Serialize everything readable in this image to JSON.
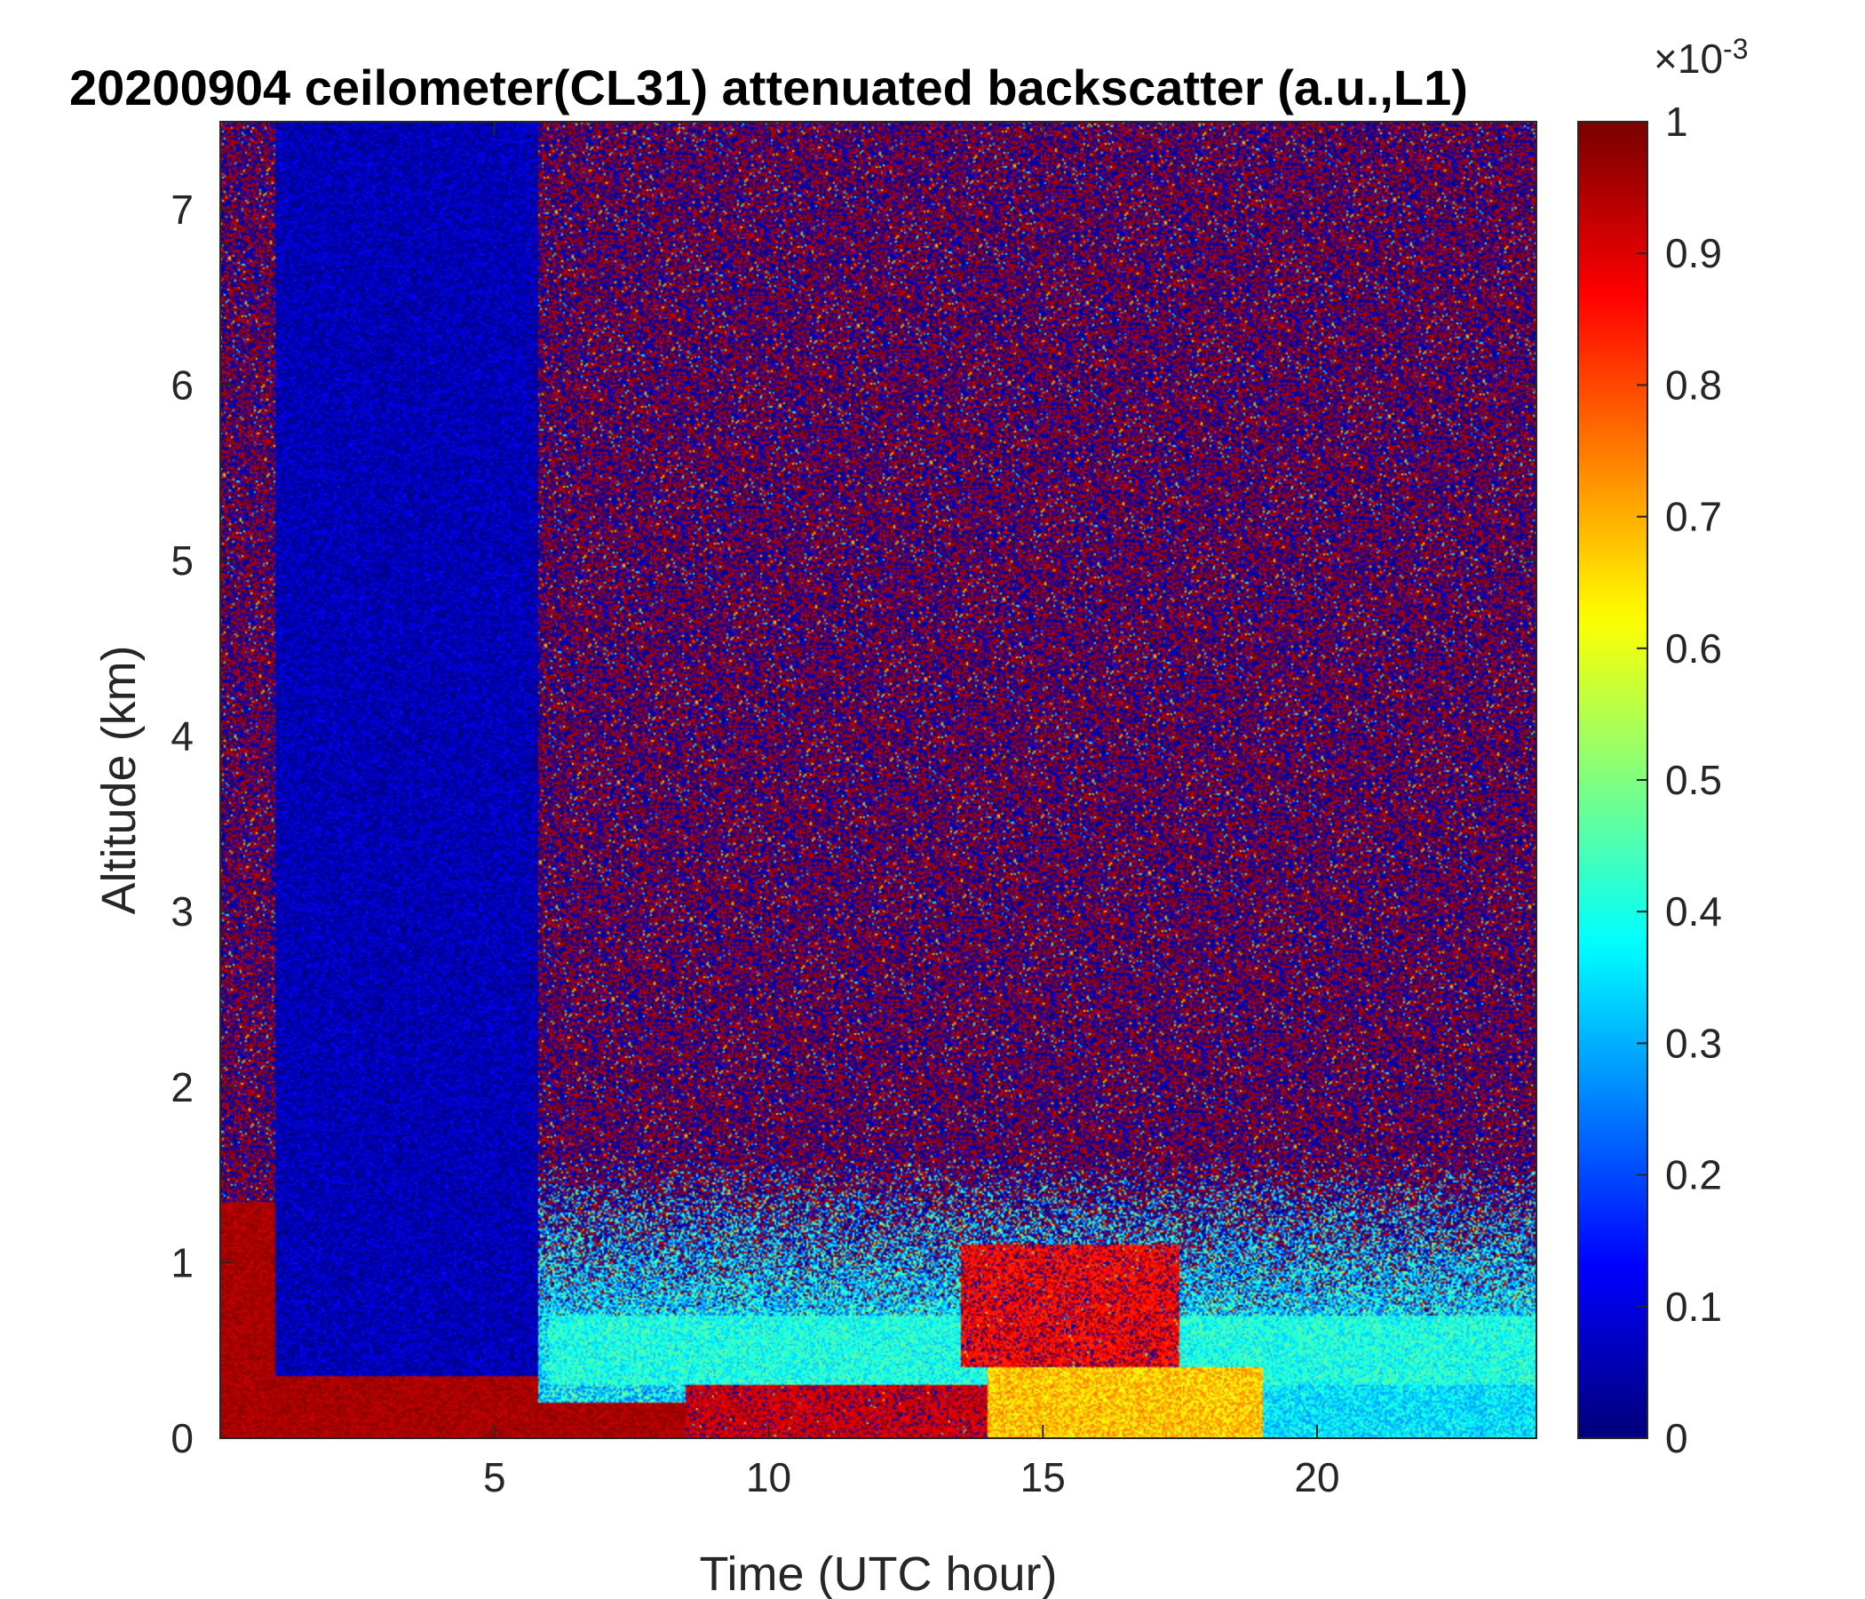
{
  "chart_data": {
    "type": "heatmap",
    "title": "20200904 ceilometer(CL31) attenuated backscatter (a.u.,L1)",
    "xlabel": "Time (UTC hour)",
    "ylabel": "Altitude (km)",
    "xlim": [
      0,
      24
    ],
    "ylim": [
      0,
      7.5
    ],
    "x_ticks": [
      5,
      10,
      15,
      20
    ],
    "y_ticks": [
      0,
      1,
      2,
      3,
      4,
      5,
      6,
      7
    ],
    "colorbar": {
      "colormap": "jet",
      "range": [
        0,
        0.001
      ],
      "tick_values": [
        0,
        0.1,
        0.2,
        0.3,
        0.4,
        0.5,
        0.6,
        0.7,
        0.8,
        0.9,
        1
      ],
      "tick_labels": [
        "0",
        "0.1",
        "0.2",
        "0.3",
        "0.4",
        "0.5",
        "0.6",
        "0.7",
        "0.8",
        "0.9",
        "1"
      ],
      "exponent_base": "×10",
      "exponent_power": "-3"
    },
    "features": [
      {
        "x_range": [
          0,
          1.0
        ],
        "y_range": [
          0,
          1.35
        ],
        "level": 1.0
      },
      {
        "x_range": [
          1.0,
          5.8
        ],
        "y_range": [
          0,
          0.35
        ],
        "level": 1.0
      },
      {
        "x_range": [
          5.8,
          8.5
        ],
        "y_range": [
          0,
          0.2
        ],
        "level": 1.0
      },
      {
        "x_range": [
          8.5,
          14.0
        ],
        "y_range": [
          0,
          0.3
        ],
        "level": 0.95
      },
      {
        "x_range": [
          13.5,
          17.5
        ],
        "y_range": [
          0.4,
          1.1
        ],
        "level": 0.9
      },
      {
        "x_range": [
          14.0,
          19.0
        ],
        "y_range": [
          0,
          0.4
        ],
        "level": 0.68
      },
      {
        "x_range": [
          6.0,
          24.0
        ],
        "y_range": [
          0.3,
          0.7
        ],
        "level": 0.4
      },
      {
        "x_range": [
          19.0,
          24.0
        ],
        "y_range": [
          0,
          0.4
        ],
        "level": 0.35
      },
      {
        "x_range": [
          1.0,
          5.8
        ],
        "y_range": [
          0.35,
          7.5
        ],
        "level": 0.05
      },
      {
        "x_range": [
          0,
          24.0
        ],
        "y_range": [
          1.0,
          7.5
        ],
        "level": "noise 0 to 1"
      }
    ]
  }
}
